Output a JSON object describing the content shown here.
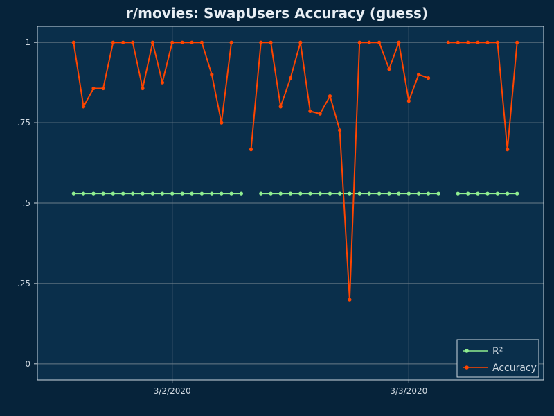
{
  "chart_data": {
    "type": "line",
    "title": "r/movies: SwapUsers Accuracy (guess)",
    "xlabel": "",
    "ylabel": "",
    "ylim": [
      -0.05,
      1.05
    ],
    "y_ticks": [
      "0",
      ".25",
      ".5",
      ".75",
      "1"
    ],
    "y_tick_values": [
      0,
      0.25,
      0.5,
      0.75,
      1
    ],
    "x_ticks": [
      "3/2/2020",
      "3/3/2020"
    ],
    "x_tick_values": [
      0,
      1
    ],
    "xlim": [
      -0.57,
      1.57
    ],
    "grid": true,
    "legend_position": "bottom-right",
    "colors": {
      "background": "#06233a",
      "plot_background": "#0a2f4b",
      "grid": "#6b7c88",
      "r2": "#90ee90",
      "accuracy": "#ff4500"
    },
    "x": [
      -0.417,
      -0.375,
      -0.333,
      -0.292,
      -0.25,
      -0.208,
      -0.167,
      -0.125,
      -0.083,
      -0.042,
      0.0,
      0.042,
      0.083,
      0.125,
      0.167,
      0.208,
      0.25,
      0.292,
      0.333,
      0.375,
      0.417,
      0.458,
      0.5,
      0.542,
      0.583,
      0.625,
      0.667,
      0.708,
      0.75,
      0.792,
      0.833,
      0.875,
      0.917,
      0.958,
      1.0,
      1.042,
      1.083,
      1.125,
      1.167,
      1.208,
      1.25,
      1.292,
      1.333,
      1.375,
      1.417,
      1.458
    ],
    "series": [
      {
        "name": "R²",
        "key": "r2",
        "values": [
          0.53,
          0.53,
          0.53,
          0.53,
          0.53,
          0.53,
          0.53,
          0.53,
          0.53,
          0.53,
          0.53,
          0.53,
          0.53,
          0.53,
          0.53,
          0.53,
          0.53,
          0.53,
          null,
          0.53,
          0.53,
          0.53,
          0.53,
          0.53,
          0.53,
          0.53,
          0.53,
          0.53,
          0.53,
          0.53,
          0.53,
          0.53,
          0.53,
          0.53,
          0.53,
          0.53,
          0.53,
          0.53,
          null,
          0.53,
          0.53,
          0.53,
          0.53,
          0.53,
          0.53,
          0.53
        ]
      },
      {
        "name": "Accuracy",
        "key": "accuracy",
        "values": [
          1.0,
          0.8,
          0.857,
          0.857,
          1.0,
          1.0,
          1.0,
          0.857,
          1.0,
          0.875,
          1.0,
          1.0,
          1.0,
          1.0,
          0.9,
          0.75,
          1.0,
          null,
          0.667,
          1.0,
          1.0,
          0.8,
          0.889,
          1.0,
          0.786,
          0.778,
          0.833,
          0.727,
          0.2,
          1.0,
          1.0,
          1.0,
          0.917,
          1.0,
          0.818,
          0.9,
          0.889,
          null,
          1.0,
          1.0,
          1.0,
          1.0,
          1.0,
          1.0,
          0.667,
          1.0
        ]
      }
    ]
  }
}
